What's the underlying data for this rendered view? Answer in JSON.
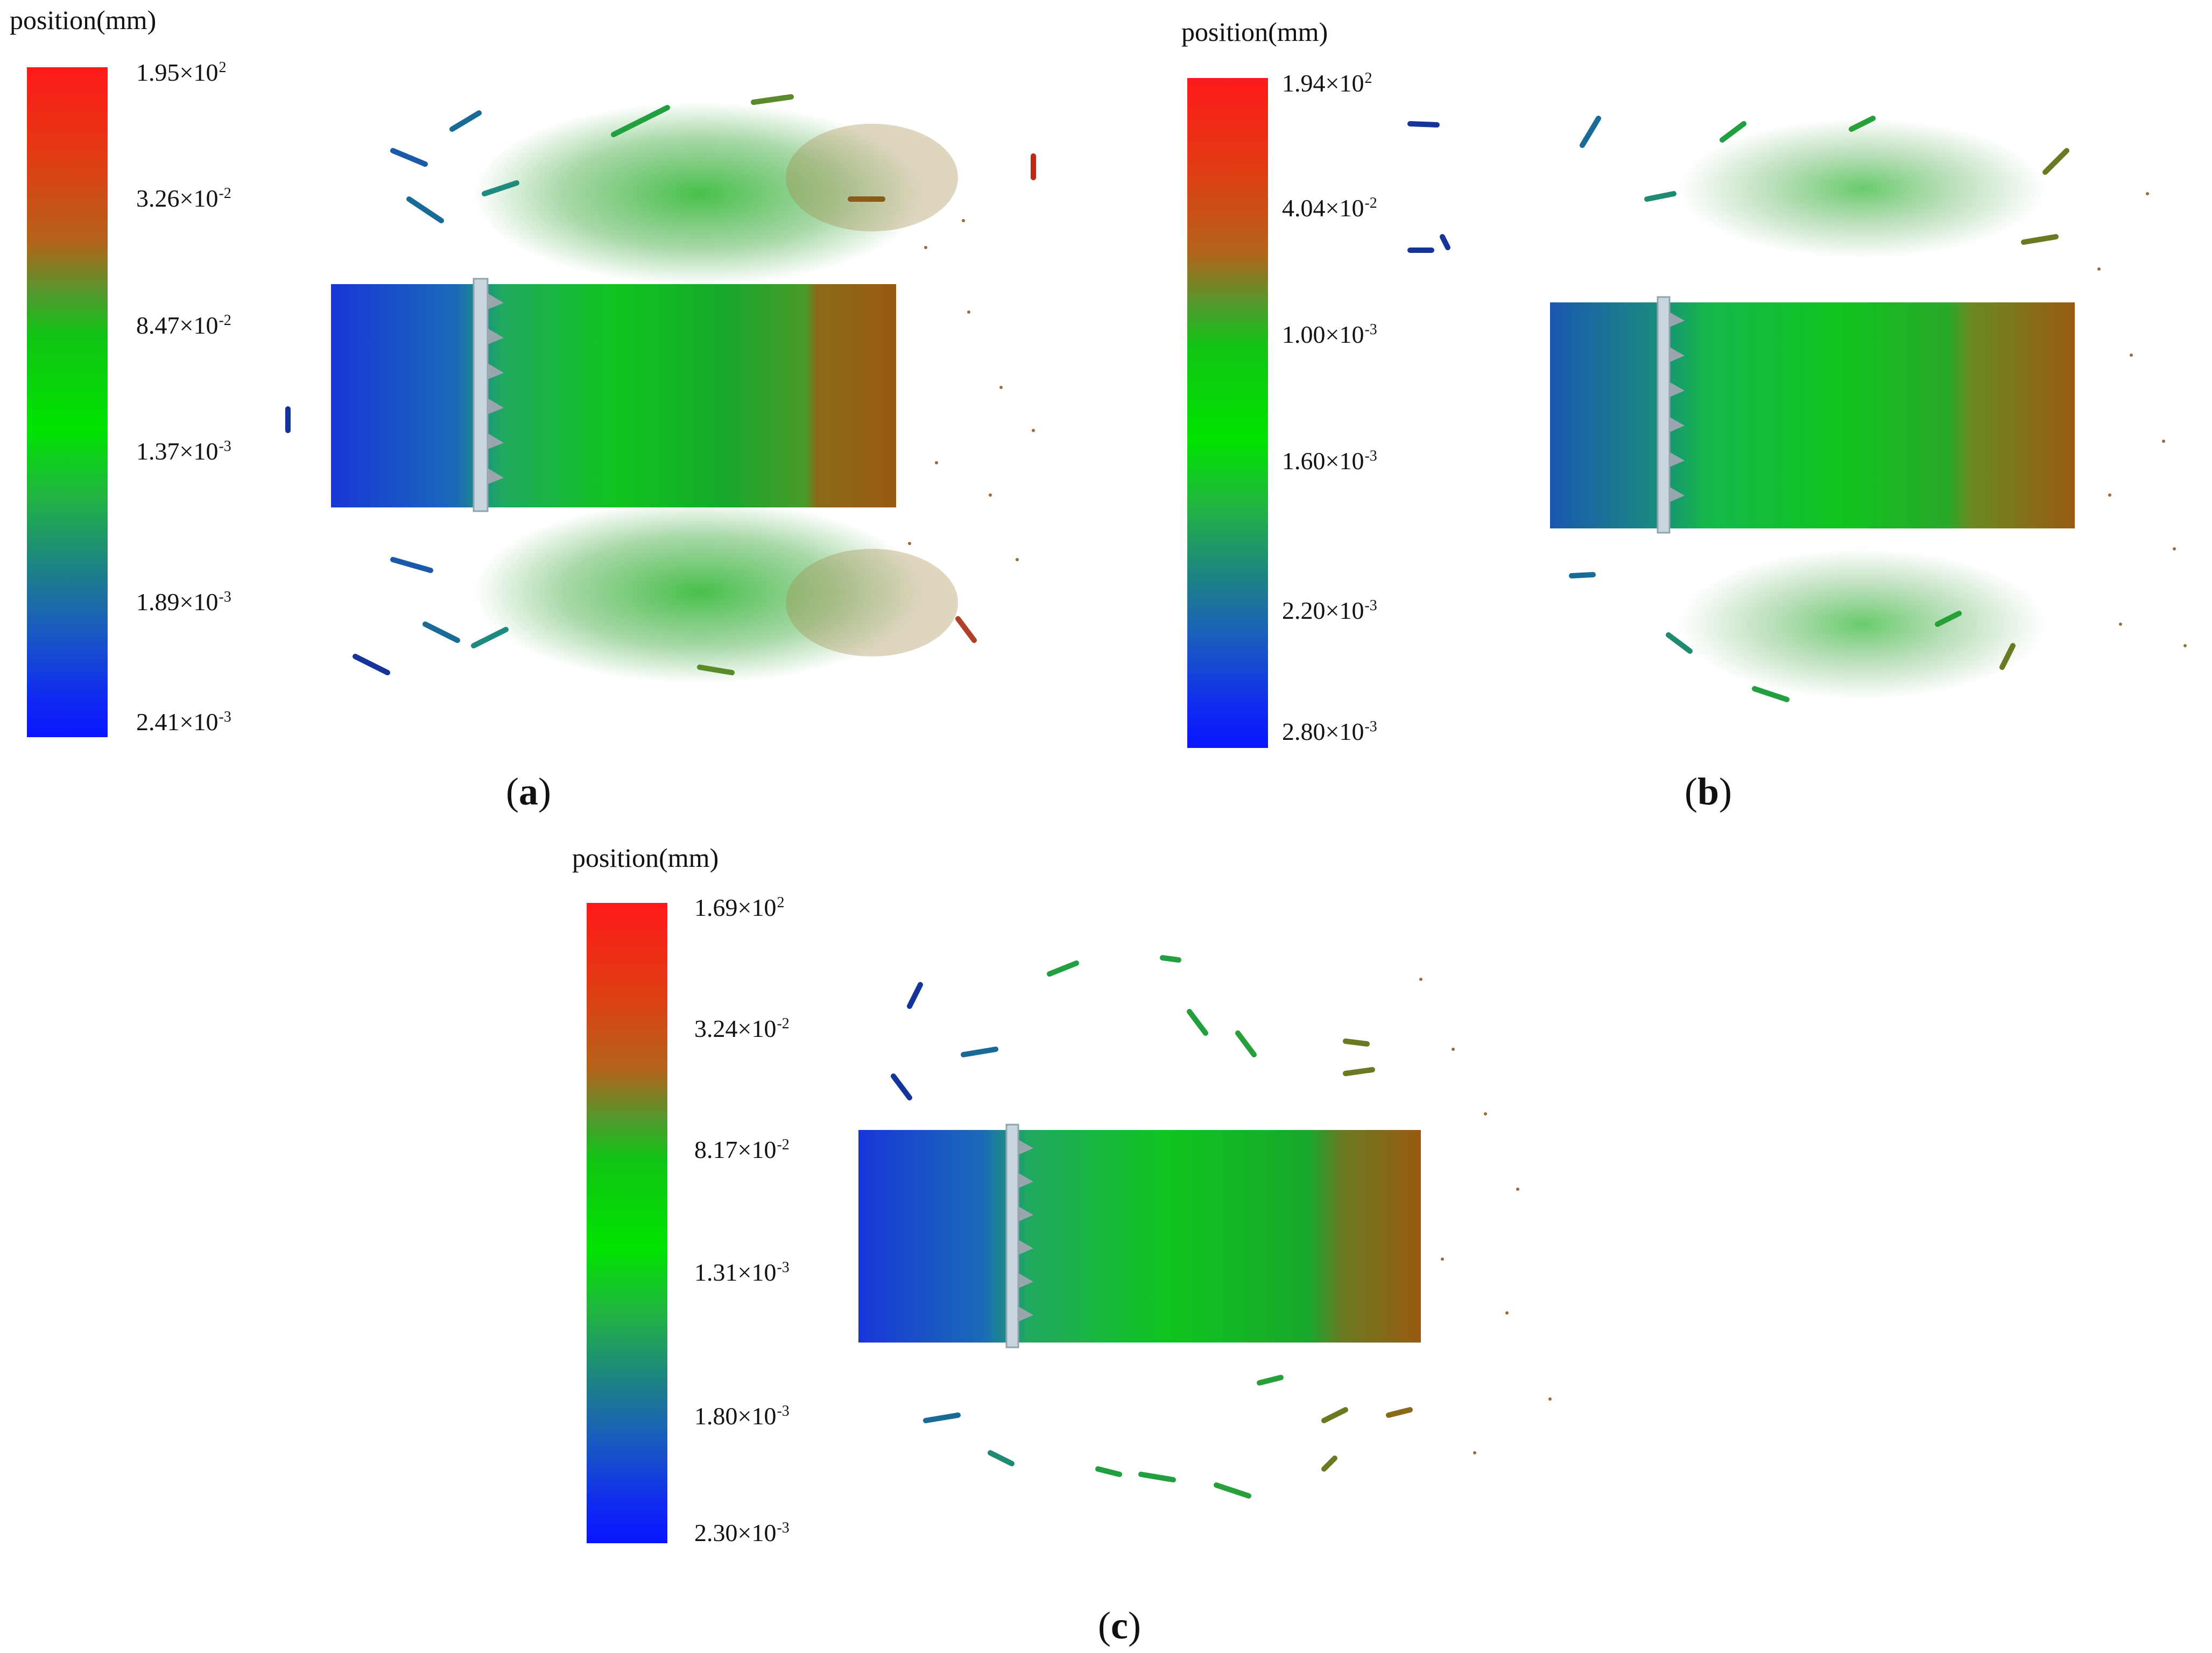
{
  "colors": {
    "max": "#ff1a1a",
    "upper": "#b4641a",
    "mid": "#00e400",
    "lower": "#1d8a7a",
    "min": "#0a16ff"
  },
  "panels": [
    {
      "id": "a",
      "legend_title": "position(mm)",
      "legend_ticks": [
        {
          "mantissa": "1.95×10",
          "exp": "2"
        },
        {
          "mantissa": "3.26×10",
          "exp": "-2"
        },
        {
          "mantissa": "8.47×10",
          "exp": "-2"
        },
        {
          "mantissa": "1.37×10",
          "exp": "-3"
        },
        {
          "mantissa": "1.89×10",
          "exp": "-3"
        },
        {
          "mantissa": "2.41×10",
          "exp": "-3"
        }
      ],
      "caption_open": "(",
      "caption_letter": "a",
      "caption_close": ")"
    },
    {
      "id": "b",
      "legend_title": "position(mm)",
      "legend_ticks": [
        {
          "mantissa": "1.94×10",
          "exp": "2"
        },
        {
          "mantissa": "4.04×10",
          "exp": "-2"
        },
        {
          "mantissa": "1.00×10",
          "exp": "-3"
        },
        {
          "mantissa": "1.60×10",
          "exp": "-3"
        },
        {
          "mantissa": "2.20×10",
          "exp": "-3"
        },
        {
          "mantissa": "2.80×10",
          "exp": "-3"
        }
      ],
      "caption_open": "(",
      "caption_letter": "b",
      "caption_close": ")"
    },
    {
      "id": "c",
      "legend_title": "position(mm)",
      "legend_ticks": [
        {
          "mantissa": "1.69×10",
          "exp": "2"
        },
        {
          "mantissa": "3.24×10",
          "exp": "-2"
        },
        {
          "mantissa": "8.17×10",
          "exp": "-2"
        },
        {
          "mantissa": "1.31×10",
          "exp": "-3"
        },
        {
          "mantissa": "1.80×10",
          "exp": "-3"
        },
        {
          "mantissa": "2.30×10",
          "exp": "-3"
        }
      ],
      "caption_open": "(",
      "caption_letter": "c",
      "caption_close": ")"
    }
  ]
}
